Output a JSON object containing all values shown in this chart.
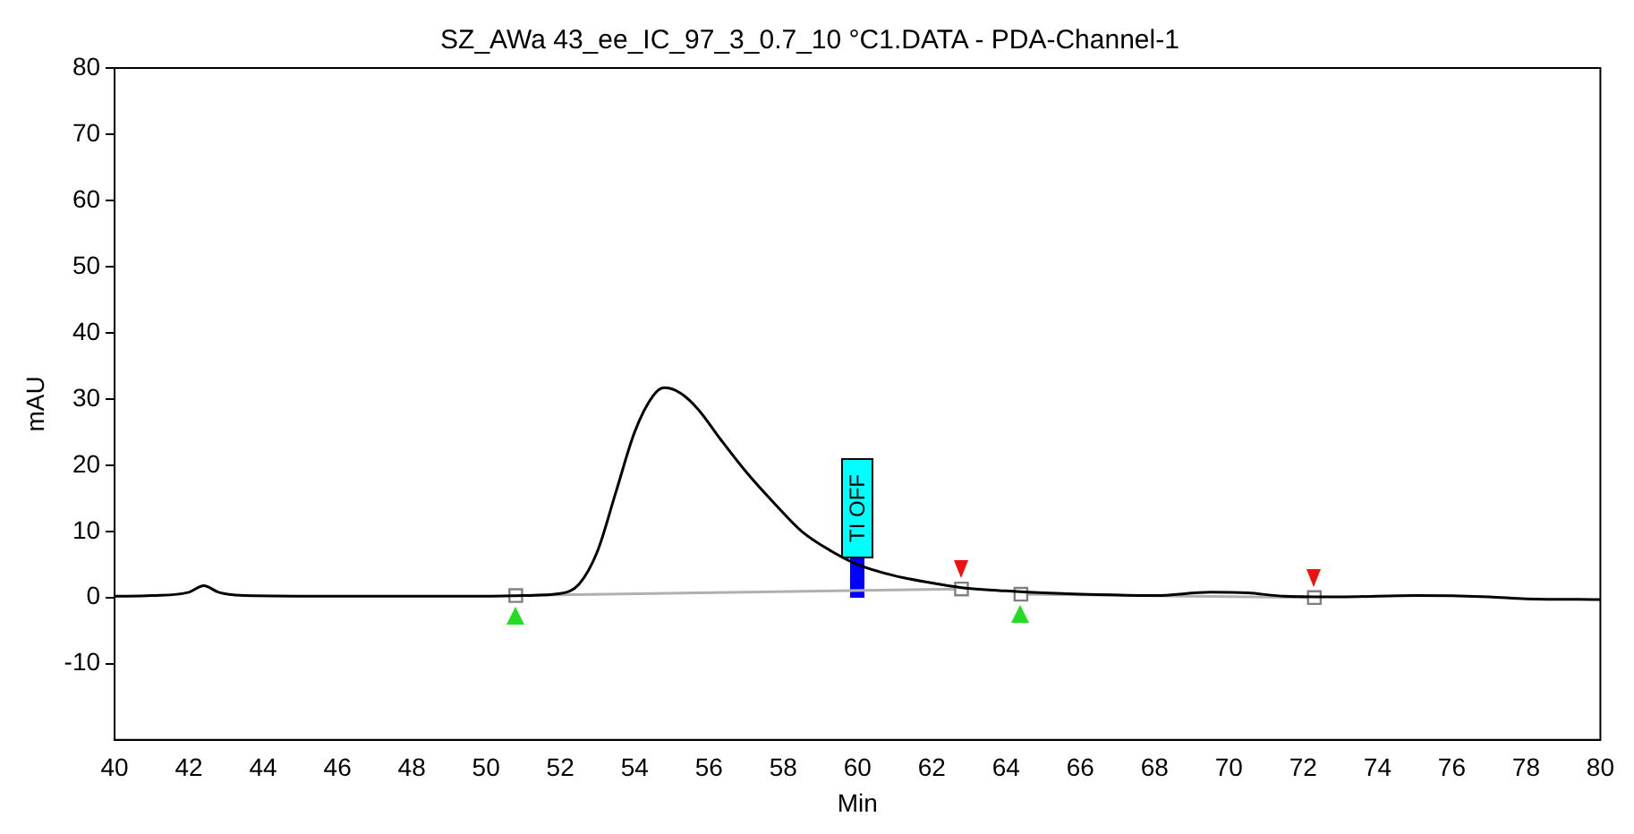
{
  "chart_data": {
    "type": "line",
    "title": "SZ_AWa 43_ee_IC_97_3_0.7_10 °C1.DATA - PDA-Channel-1",
    "xlabel": "Min",
    "ylabel": "mAU",
    "xlim": [
      40,
      80
    ],
    "xticks": [
      40,
      42,
      44,
      46,
      48,
      50,
      52,
      54,
      56,
      58,
      60,
      62,
      64,
      66,
      68,
      70,
      72,
      74,
      76,
      78,
      80
    ],
    "ylim": [
      -21.5,
      80
    ],
    "yticks": [
      -10,
      0,
      10,
      20,
      30,
      40,
      50,
      60,
      70,
      80
    ],
    "grid": false,
    "legend": false,
    "series": [
      {
        "color": "#000000",
        "marker": "none",
        "x": [
          40,
          41,
          42,
          42.4,
          42.8,
          43.5,
          46,
          50,
          51,
          52,
          52.5,
          53,
          53.5,
          54,
          54.5,
          54.8,
          55.2,
          55.7,
          56.3,
          57,
          57.8,
          58.5,
          59.3,
          60,
          61,
          62,
          62.8,
          64,
          65,
          66,
          68,
          69.5,
          70.5,
          71.5,
          73,
          75,
          77,
          78,
          80
        ],
        "values": [
          0.2,
          0.3,
          0.8,
          1.8,
          0.8,
          0.3,
          0.2,
          0.2,
          0.3,
          0.6,
          2,
          7,
          16,
          25,
          30.5,
          31.7,
          31,
          28.5,
          24,
          19,
          14,
          10,
          7,
          5,
          3.3,
          2.2,
          1.5,
          1.0,
          0.7,
          0.5,
          0.3,
          0.8,
          0.7,
          0.2,
          0.1,
          0.3,
          0.1,
          -0.2,
          -0.3
        ]
      },
      {
        "color": "#b0b0b0",
        "marker": "square",
        "x": [
          50.8,
          62.8
        ],
        "values": [
          0.3,
          1.3
        ]
      },
      {
        "color": "#b0b0b0",
        "marker": "square",
        "x": [
          64.4,
          72.3
        ],
        "values": [
          0.5,
          0
        ]
      }
    ],
    "annotations": [
      {
        "text": "TI OFF",
        "x": 60,
        "y": 6
      }
    ]
  }
}
